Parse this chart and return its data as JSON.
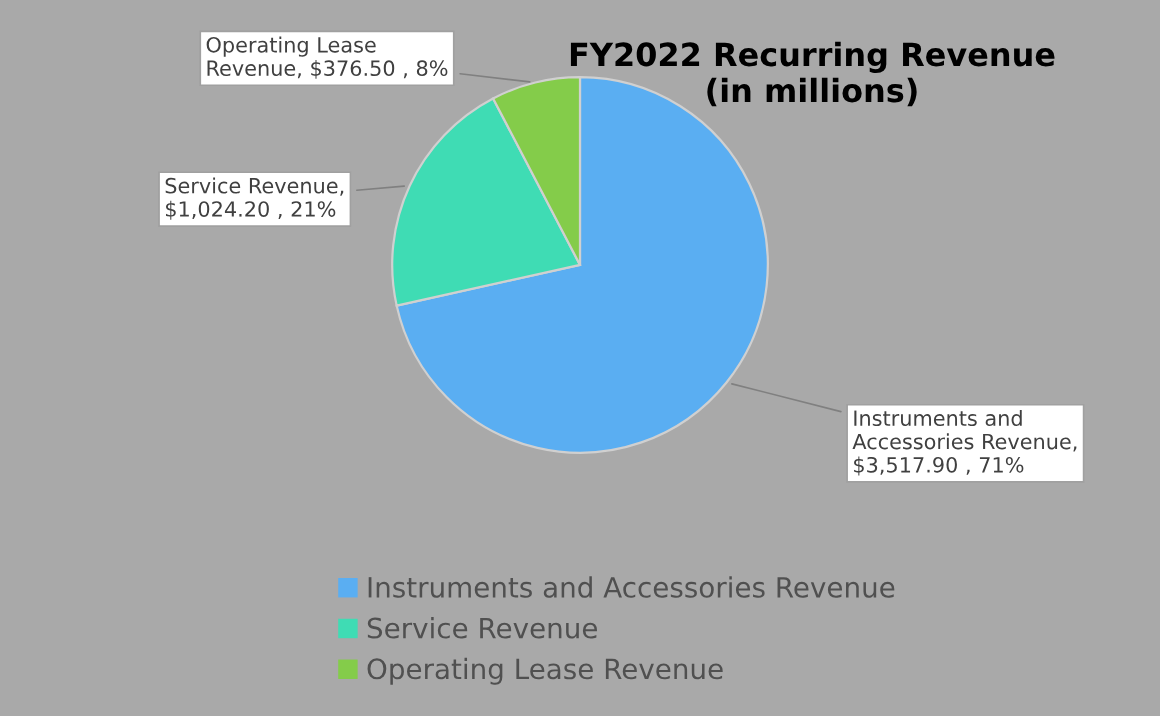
{
  "chart_data": {
    "type": "pie",
    "title": "FY2022 Recurring Revenue\n(in millions)",
    "categories": [
      "Instruments and Accessories Revenue",
      "Service Revenue",
      "Operating Lease Revenue"
    ],
    "values": [
      3517.9,
      1024.2,
      376.5
    ],
    "colors": [
      "#5aaef2",
      "#3fdcb4",
      "#84cc4a"
    ],
    "value_labels": [
      "Instruments and\nAccessories Revenue,\n$3,517.90 , 71%",
      "Service Revenue,\n$1,024.20 , 21%",
      "Operating Lease\nRevenue, $376.50 , 8%"
    ],
    "legend": "bottom"
  }
}
